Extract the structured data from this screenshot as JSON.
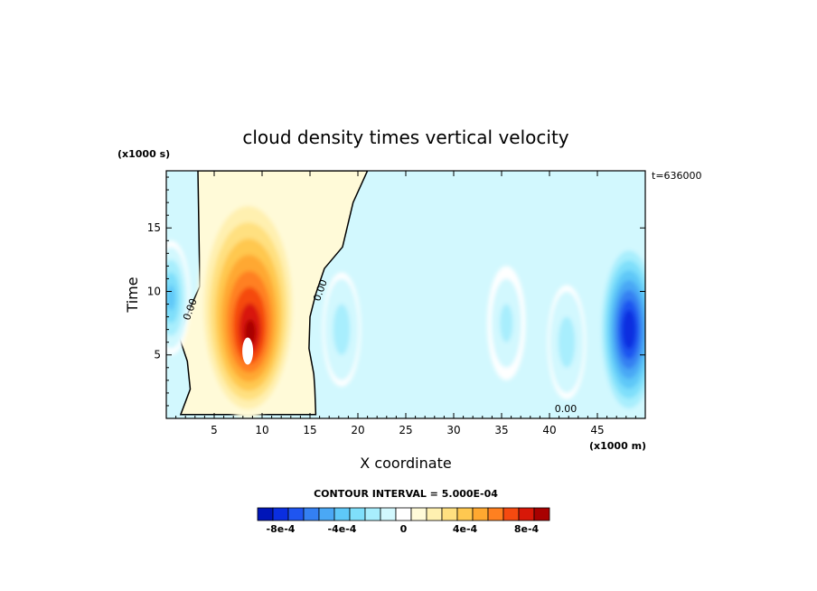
{
  "chart_data": {
    "type": "heatmap",
    "title": "cloud density times vertical velocity",
    "xlabel": "X coordinate",
    "ylabel": "Time",
    "x_unit": "(x1000 m)",
    "y_unit": "(x1000 s)",
    "time_stamp": "t=636000",
    "xlim": [
      0,
      50
    ],
    "ylim": [
      0,
      19.5
    ],
    "x_ticks": [
      5,
      10,
      15,
      20,
      25,
      30,
      35,
      40,
      45
    ],
    "y_ticks": [
      5,
      10,
      15
    ],
    "contour_labels": [
      {
        "text": "0.00",
        "x": 2.8,
        "y": 8.5
      },
      {
        "text": "0.00",
        "x": 16.4,
        "y": 10.0
      },
      {
        "text": "0.00",
        "x": 41.7,
        "y": 0.5
      }
    ],
    "contour_interval_label": "CONTOUR INTERVAL = 5.000E-04",
    "colorbar": {
      "colors": [
        "#0015b8",
        "#0a2ee0",
        "#1f55f0",
        "#3480f2",
        "#4aa8f5",
        "#5ec8f8",
        "#7fdffb",
        "#a8eefd",
        "#d2f8fe",
        "#ffffff",
        "#fffad8",
        "#fff0b0",
        "#ffe080",
        "#ffc850",
        "#ffa830",
        "#ff8020",
        "#f54a10",
        "#d81808",
        "#a80000"
      ],
      "tick_labels": [
        "-8e-4",
        "-4e-4",
        "0",
        "4e-4",
        "8e-4"
      ],
      "tick_values": [
        -0.0008,
        -0.0004,
        0,
        0.0004,
        0.0008
      ],
      "range": [
        -0.00095,
        0.00095
      ]
    },
    "features": [
      {
        "kind": "positive_region",
        "x": [
          1,
          16
        ],
        "y": [
          0,
          19.5
        ],
        "level": 5e-05
      },
      {
        "kind": "updraft_core",
        "x": 8.5,
        "y": 6.5,
        "peak": 0.00095
      },
      {
        "kind": "downdraft",
        "x": 48.3,
        "y": 7.0,
        "peak": -0.00085
      },
      {
        "kind": "downdraft",
        "x": 0.5,
        "y": 9.5,
        "peak": -0.0004
      },
      {
        "kind": "downdraft",
        "x": 18.3,
        "y": 7.0,
        "peak": -0.00025
      },
      {
        "kind": "downdraft",
        "x": 35.5,
        "y": 7.5,
        "peak": -0.0002
      },
      {
        "kind": "downdraft",
        "x": 41.8,
        "y": 6.0,
        "peak": -0.00025
      }
    ]
  }
}
